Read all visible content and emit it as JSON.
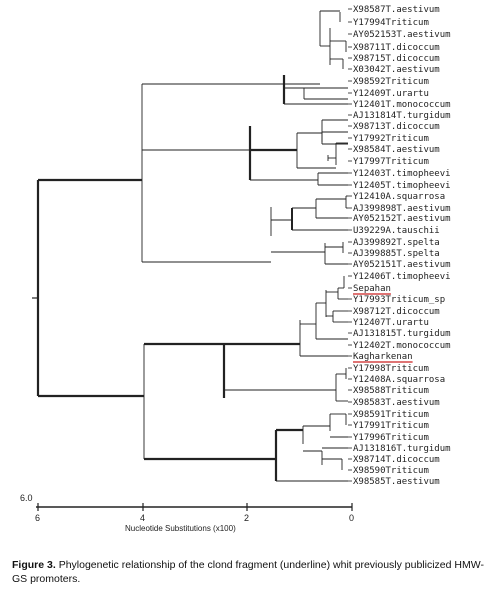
{
  "tree": {
    "leaves": [
      "X98587T.aestivum",
      "Y17994Triticum",
      "AY052153T.aestivum",
      "X98711T.dicoccum",
      "X98715T.dicoccum",
      "X03042T.aestivum",
      "X98592Triticum",
      "Y12409T.urartu",
      "Y12401T.monococcum",
      "AJ131814T.turgidum",
      "X98713T.dicoccum",
      "Y17992Triticum",
      "X98584T.aestivum",
      "Y17997Triticum",
      "Y12403T.timopheevi",
      "Y12405T.timopheevi",
      "Y12410A.squarrosa",
      "AJ399898T.aestivum",
      "AY052152T.aestivum",
      "U39229A.tauschii",
      "AJ399892T.spelta",
      "AJ399885T.spelta",
      "AY052151T.aestivum",
      "Y12406T.timopheevi",
      "Sepahan",
      "Y17993Triticum_sp",
      "X98712T.dicoccum",
      "Y12407T.urartu",
      "AJ131815T.turgidum",
      "Y12402T.monococcum",
      "Kagharkenan",
      "Y17998Triticum",
      "Y12408A.squarrosa",
      "X98588Triticum",
      "X98583T.aestivum",
      "X98591Triticum",
      "Y17991Triticum",
      "Y17996Triticum",
      "AJ131816T.turgidum",
      "X98714T.dicoccum",
      "X98590Triticum",
      "X98585T.aestivum"
    ],
    "highlighted": [
      "Sepahan",
      "Kagharkenan"
    ],
    "highlight_color": "#cc2222",
    "scale_top_label": "6.0",
    "scale_ticks": [
      "6",
      "4",
      "2",
      "0"
    ],
    "axis_title": "Nucleotide Substitutions (x100)"
  },
  "caption": {
    "label": "Figure 3.",
    "text": "Phylogenetic relationship of the clond fragment (underline) whit previously publicized HMW-GS promoters."
  }
}
